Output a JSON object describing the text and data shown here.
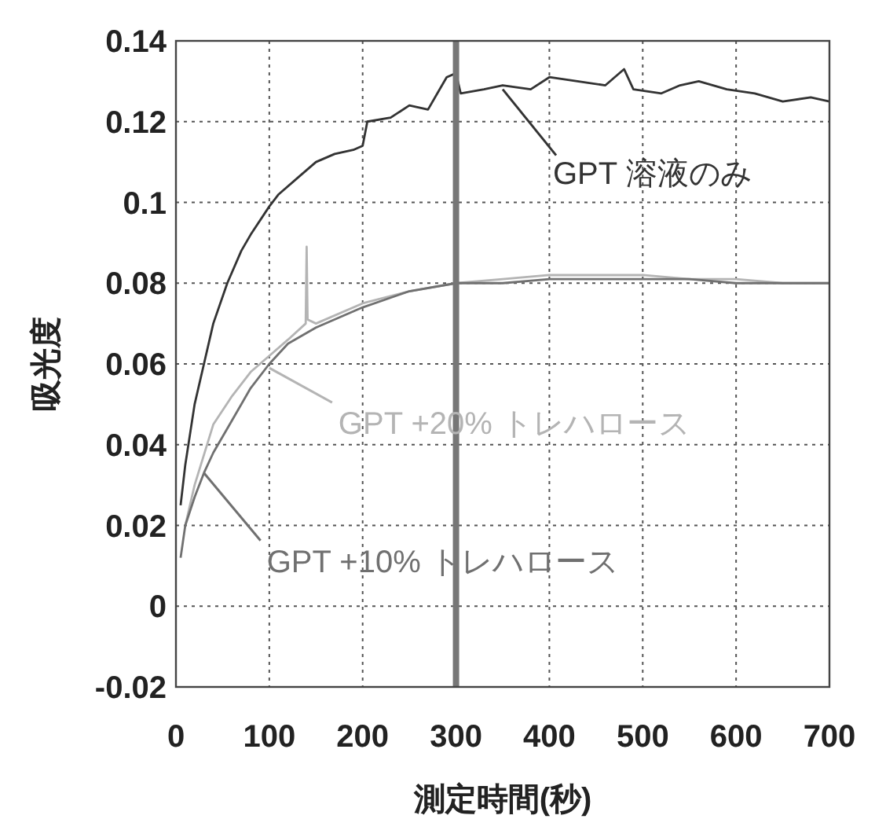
{
  "chart_data": {
    "type": "line",
    "xlabel": "測定時間(秒)",
    "ylabel": "吸光度",
    "xlim": [
      0,
      700
    ],
    "xticks": [
      0,
      100,
      200,
      300,
      400,
      500,
      600,
      700
    ],
    "ylim": [
      -0.02,
      0.14
    ],
    "yticks": [
      -0.02,
      0,
      0.02,
      0.04,
      0.06,
      0.08,
      0.1,
      0.12,
      0.14
    ],
    "grid": true,
    "line_style": "solid",
    "marker": "none",
    "series": [
      {
        "color": "#333333",
        "x": [
          5,
          10,
          20,
          30,
          40,
          55,
          70,
          80,
          100,
          110,
          130,
          150,
          170,
          190,
          200,
          205,
          230,
          250,
          270,
          280,
          290,
          300,
          305,
          330,
          350,
          380,
          400,
          430,
          460,
          480,
          490,
          520,
          540,
          560,
          590,
          620,
          650,
          680,
          700
        ],
        "values": [
          0.025,
          0.035,
          0.05,
          0.06,
          0.07,
          0.08,
          0.088,
          0.092,
          0.099,
          0.102,
          0.106,
          0.11,
          0.112,
          0.113,
          0.114,
          0.12,
          0.121,
          0.124,
          0.123,
          0.127,
          0.131,
          0.132,
          0.127,
          0.128,
          0.129,
          0.128,
          0.131,
          0.13,
          0.129,
          0.133,
          0.128,
          0.127,
          0.129,
          0.13,
          0.128,
          0.127,
          0.125,
          0.126,
          0.125
        ]
      },
      {
        "color": "#b4b4b4",
        "x": [
          10,
          20,
          40,
          60,
          80,
          100,
          120,
          139,
          140,
          141,
          150,
          200,
          250,
          300,
          350,
          400,
          450,
          500,
          550,
          600,
          650,
          700
        ],
        "values": [
          0.02,
          0.03,
          0.045,
          0.052,
          0.058,
          0.062,
          0.066,
          0.07,
          0.089,
          0.071,
          0.07,
          0.075,
          0.078,
          0.08,
          0.081,
          0.082,
          0.082,
          0.082,
          0.081,
          0.081,
          0.08,
          0.08
        ]
      },
      {
        "color": "#707070",
        "x": [
          5,
          10,
          20,
          30,
          40,
          60,
          80,
          100,
          120,
          150,
          200,
          250,
          300,
          350,
          400,
          450,
          500,
          550,
          600,
          650,
          700
        ],
        "values": [
          0.012,
          0.02,
          0.027,
          0.033,
          0.038,
          0.046,
          0.054,
          0.06,
          0.065,
          0.069,
          0.074,
          0.078,
          0.08,
          0.08,
          0.081,
          0.081,
          0.081,
          0.081,
          0.08,
          0.08,
          0.08
        ]
      }
    ],
    "ref_lines": [
      {
        "axis": "x",
        "value": 300,
        "color": "#777777"
      }
    ],
    "annotations": [
      {
        "text": "GPT 溶液のみ",
        "x": 350,
        "y": 0.128
      },
      {
        "text": "GPT +20% トレハロース",
        "x": 100,
        "y": 0.059
      },
      {
        "text": "GPT +10% トレハロース",
        "x": 30,
        "y": 0.033
      }
    ]
  }
}
